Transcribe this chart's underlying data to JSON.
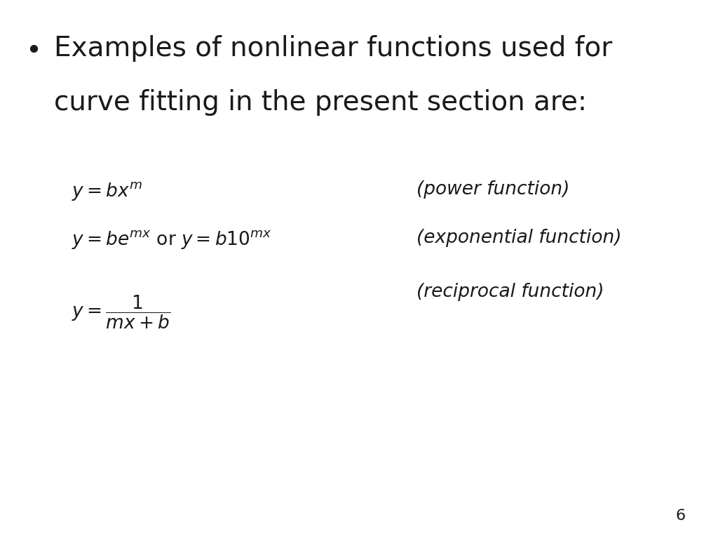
{
  "background_color": "#ffffff",
  "bullet_text_line1": "Examples of nonlinear functions used for",
  "bullet_text_line2": "curve fitting in the present section are:",
  "bullet_char": "•",
  "eq1": "$y = bx^{m}$",
  "eq1_label": "(power function)",
  "eq2": "$y = be^{mx}$ or $y = b10^{mx}$",
  "eq2_label": "(exponential function)",
  "eq3": "$y = \\dfrac{1}{mx+b}$",
  "eq3_label": "(reciprocal function)",
  "page_number": "6",
  "bullet_fontsize": 28,
  "eq_fontsize": 19,
  "label_fontsize": 19,
  "page_fontsize": 16,
  "text_color": "#1a1a1a"
}
